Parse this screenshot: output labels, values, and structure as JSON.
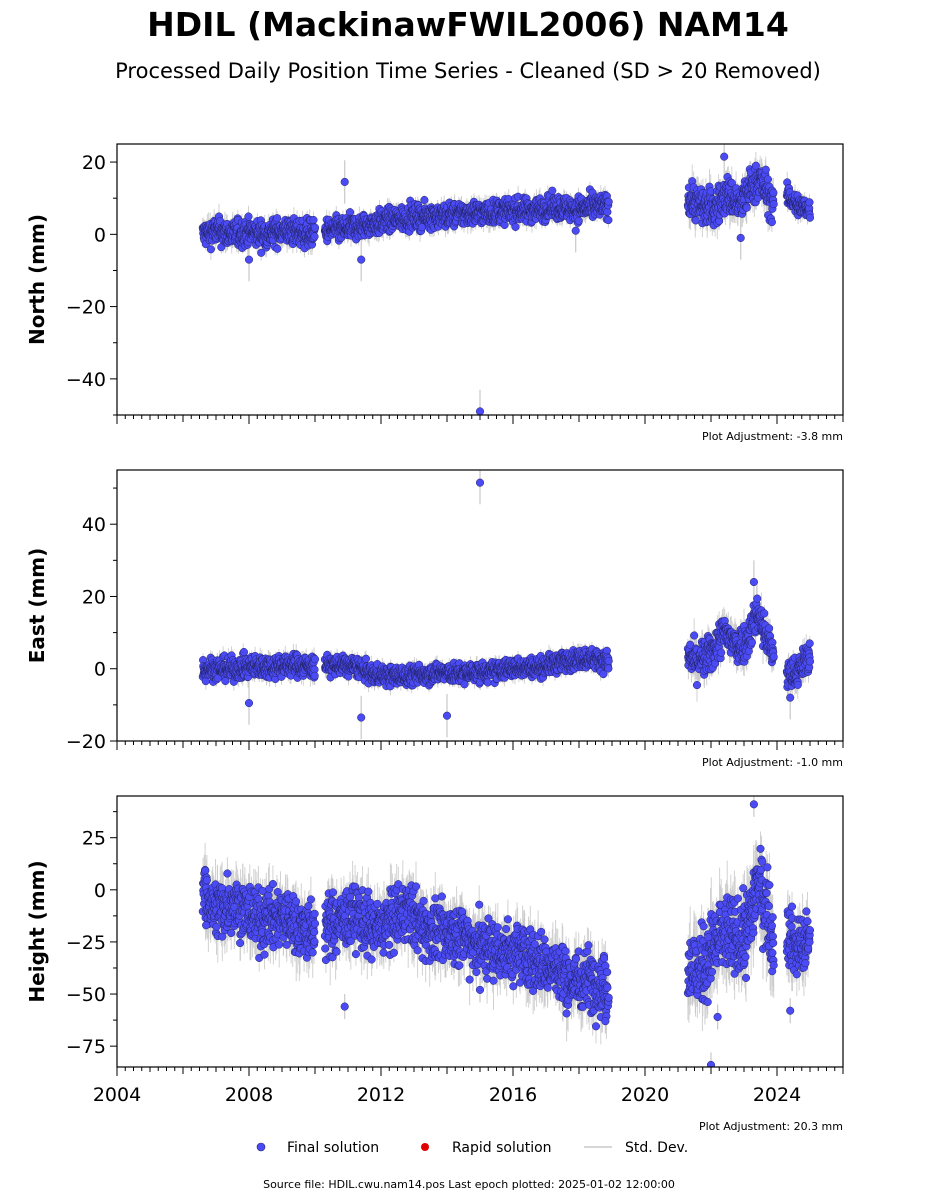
{
  "title": "HDIL (MackinawFWIL2006) NAM14",
  "subtitle": "Processed Daily Position Time Series - Cleaned (SD > 20 Removed)",
  "legend": {
    "final": "Final solution",
    "rapid": "Rapid solution",
    "std": "Std. Dev."
  },
  "source_text": "Source file: HDIL.cwu.nam14.pos  Last epoch plotted: 2025-01-02 12:00:00",
  "colors": {
    "final": "#4b4bf5",
    "rapid": "#e00000",
    "std": "#c8c8c8",
    "marker_edge": "#222266"
  },
  "chart_data": [
    {
      "type": "scatter",
      "ylabel": "North (mm)",
      "adjustment": "Plot Adjustment: -3.8 mm",
      "xlim": [
        2004,
        2026
      ],
      "ylim": [
        -50,
        25
      ],
      "yticks": [
        20,
        0,
        -20,
        -40
      ],
      "ytick_labels": [
        "20",
        "0",
        "−20",
        "−40"
      ],
      "xticks": [
        2004,
        2008,
        2012,
        2016,
        2020,
        2024
      ],
      "xtick_labels": [],
      "segments": [
        {
          "x": [
            2006.6,
            2007.0,
            2007.5,
            2008.0,
            2008.5,
            2009.0,
            2009.5,
            2010.0
          ],
          "y": [
            0,
            1,
            0,
            0.5,
            0,
            1,
            0.5,
            0
          ],
          "spread": 1.8
        },
        {
          "x": [
            2010.3,
            2010.8,
            2011.3,
            2011.8,
            2012.3,
            2012.8,
            2013.3,
            2013.8,
            2014.3,
            2014.8,
            2015.3,
            2015.8,
            2016.3,
            2016.8,
            2017.3,
            2017.8,
            2018.3,
            2018.9
          ],
          "y": [
            1,
            1.5,
            2,
            3,
            4,
            4.5,
            5,
            5,
            5.5,
            6,
            6,
            6.5,
            6.5,
            7,
            7.5,
            7,
            7.5,
            8
          ],
          "spread": 1.6
        },
        {
          "x": [
            2021.3,
            2021.7,
            2022.1,
            2022.5,
            2022.9,
            2023.2,
            2023.5,
            2023.9
          ],
          "y": [
            10,
            8,
            7,
            11,
            8,
            13,
            15,
            8
          ],
          "spread": 2.5
        },
        {
          "x": [
            2024.3,
            2024.6,
            2025.0
          ],
          "y": [
            11,
            8,
            7
          ],
          "spread": 1.5
        }
      ],
      "outliers": [
        {
          "x": 2008.0,
          "y": -7
        },
        {
          "x": 2010.9,
          "y": 14.5
        },
        {
          "x": 2011.4,
          "y": -7
        },
        {
          "x": 2015.0,
          "y": -49
        },
        {
          "x": 2022.4,
          "y": 21.5
        },
        {
          "x": 2022.9,
          "y": -1
        },
        {
          "x": 2017.9,
          "y": 1
        }
      ]
    },
    {
      "type": "scatter",
      "ylabel": "East (mm)",
      "adjustment": "Plot Adjustment: -1.0 mm",
      "xlim": [
        2004,
        2026
      ],
      "ylim": [
        -20,
        55
      ],
      "yticks": [
        40,
        20,
        0,
        -20
      ],
      "ytick_labels": [
        "40",
        "20",
        "0",
        "−20"
      ],
      "xticks": [
        2004,
        2008,
        2012,
        2016,
        2020,
        2024
      ],
      "xtick_labels": [],
      "segments": [
        {
          "x": [
            2006.6,
            2007.0,
            2007.5,
            2008.0,
            2008.5,
            2009.0,
            2009.5,
            2010.0
          ],
          "y": [
            0,
            0,
            0,
            0.5,
            0.5,
            1,
            1,
            0.5
          ],
          "spread": 1.5
        },
        {
          "x": [
            2010.3,
            2010.8,
            2011.3,
            2011.7,
            2012.3,
            2012.8,
            2013.3,
            2013.8,
            2014.3,
            2014.8,
            2015.3,
            2015.8,
            2016.3,
            2016.8,
            2017.3,
            2017.8,
            2018.3,
            2018.9
          ],
          "y": [
            1,
            1,
            0.5,
            -1.5,
            -2,
            -2,
            -1.5,
            -1,
            -1.5,
            -1,
            -1,
            0,
            0.5,
            0.5,
            1.5,
            2.5,
            3,
            2
          ],
          "spread": 1.3
        },
        {
          "x": [
            2021.3,
            2021.6,
            2022.0,
            2022.4,
            2022.8,
            2023.1,
            2023.4,
            2023.7,
            2023.9
          ],
          "y": [
            3,
            2,
            4,
            10,
            6,
            8,
            16,
            8,
            4
          ],
          "spread": 2.5
        },
        {
          "x": [
            2024.3,
            2024.6,
            2025.0
          ],
          "y": [
            -2,
            -1,
            4
          ],
          "spread": 2
        }
      ],
      "outliers": [
        {
          "x": 2015.0,
          "y": 51.5
        },
        {
          "x": 2008.0,
          "y": -9.5
        },
        {
          "x": 2011.4,
          "y": -13.5
        },
        {
          "x": 2014.0,
          "y": -13
        },
        {
          "x": 2023.3,
          "y": 24
        },
        {
          "x": 2024.4,
          "y": -8
        }
      ]
    },
    {
      "type": "scatter",
      "ylabel": "Height (mm)",
      "adjustment": "Plot Adjustment: 20.3 mm",
      "xlim": [
        2004,
        2026
      ],
      "ylim": [
        -85,
        45
      ],
      "yticks": [
        25,
        0,
        -25,
        -50,
        -75
      ],
      "ytick_labels": [
        "25",
        "0",
        "−25",
        "−50",
        "−75"
      ],
      "xticks": [
        2004,
        2008,
        2012,
        2016,
        2020,
        2024
      ],
      "xtick_labels": [
        "2004",
        "2008",
        "2012",
        "2016",
        "2020",
        "2024"
      ],
      "segments": [
        {
          "x": [
            2006.6,
            2007.0,
            2007.5,
            2008.0,
            2008.5,
            2009.0,
            2009.5,
            2010.0
          ],
          "y": [
            0,
            -10,
            -5,
            -12,
            -15,
            -12,
            -18,
            -20
          ],
          "spread": 7
        },
        {
          "x": [
            2010.3,
            2010.8,
            2011.3,
            2011.8,
            2012.3,
            2012.8,
            2013.3,
            2013.8,
            2014.3,
            2014.8,
            2015.3,
            2015.8,
            2016.3,
            2016.8,
            2017.3,
            2017.8,
            2018.3,
            2018.9
          ],
          "y": [
            -18,
            -15,
            -12,
            -20,
            -15,
            -10,
            -18,
            -22,
            -20,
            -25,
            -28,
            -30,
            -30,
            -35,
            -38,
            -45,
            -42,
            -48
          ],
          "spread": 7
        },
        {
          "x": [
            2021.3,
            2021.6,
            2022.0,
            2022.4,
            2022.8,
            2023.1,
            2023.4,
            2023.7,
            2023.9
          ],
          "y": [
            -35,
            -40,
            -30,
            -20,
            -25,
            -20,
            5,
            -10,
            -25
          ],
          "spread": 9
        },
        {
          "x": [
            2024.3,
            2024.6,
            2025.0
          ],
          "y": [
            -20,
            -28,
            -25
          ],
          "spread": 7
        }
      ],
      "outliers": [
        {
          "x": 2006.7,
          "y": -17
        },
        {
          "x": 2010.9,
          "y": -56
        },
        {
          "x": 2015.0,
          "y": -48
        },
        {
          "x": 2022.0,
          "y": -84
        },
        {
          "x": 2022.2,
          "y": -61
        },
        {
          "x": 2023.3,
          "y": 41
        },
        {
          "x": 2024.4,
          "y": -58
        },
        {
          "x": 2018.8,
          "y": -63
        }
      ]
    }
  ]
}
